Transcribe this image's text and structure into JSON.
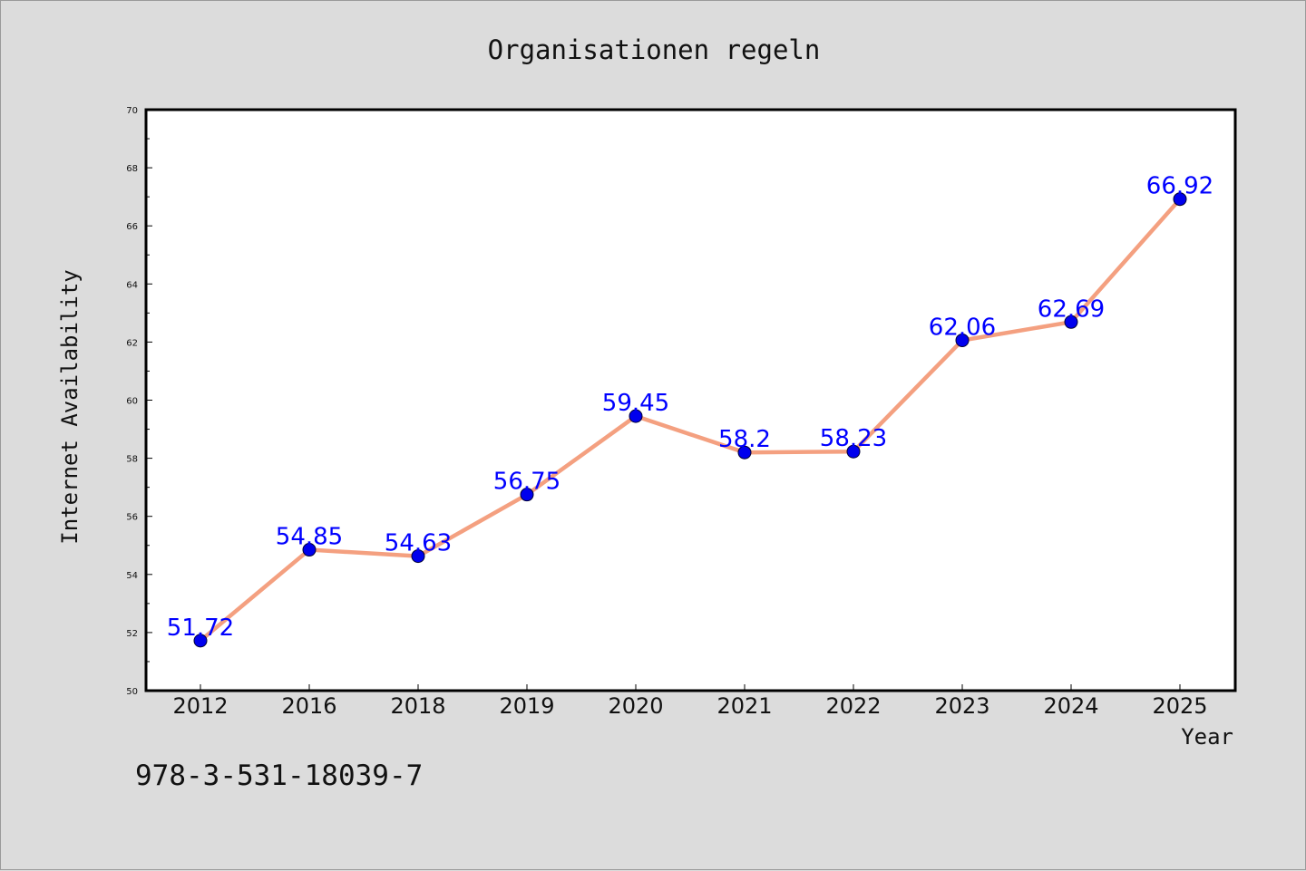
{
  "chart_data": {
    "type": "line",
    "title": "Organisationen regeln",
    "xlabel": "Year",
    "ylabel": "Internet Availability",
    "categories": [
      "2012",
      "2016",
      "2018",
      "2019",
      "2020",
      "2021",
      "2022",
      "2023",
      "2024",
      "2025"
    ],
    "series": [
      {
        "values": [
          51.72,
          54.85,
          54.63,
          56.75,
          59.45,
          58.2,
          58.23,
          62.06,
          62.69,
          66.92
        ],
        "labels": [
          "51.72",
          "54.85",
          "54.63",
          "56.75",
          "59.45",
          "58.2",
          "58.23",
          "62.06",
          "62.69",
          "66.92"
        ]
      }
    ],
    "ylim": [
      50,
      70
    ],
    "yticks": [
      "50",
      "52",
      "54",
      "56",
      "58",
      "60",
      "62",
      "64",
      "66",
      "68",
      "70"
    ],
    "grid": false,
    "legend": "none",
    "colors": {
      "line": "#f4a080",
      "marker": "#0000ee",
      "data_label": "#0000ff",
      "plot_bg": "#ffffff",
      "figure_bg": "#dcdcdc"
    }
  },
  "annotation": {
    "text": "978-3-531-18039-7"
  }
}
